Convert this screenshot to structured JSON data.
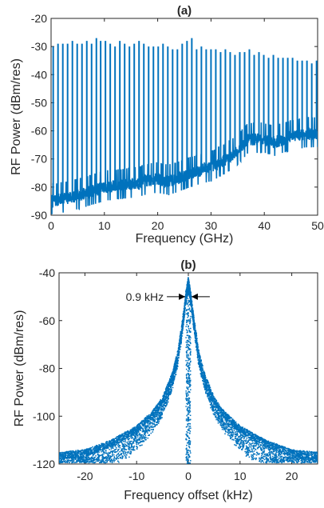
{
  "chart_data": [
    {
      "type": "line",
      "title": "(a)",
      "xlabel": "Frequency (GHz)",
      "ylabel": "RF Power (dBm/res)",
      "xlim": [
        0,
        50
      ],
      "ylim": [
        -90,
        -20
      ],
      "xticks": [
        0,
        10,
        20,
        30,
        40,
        50
      ],
      "yticks": [
        -90,
        -80,
        -70,
        -60,
        -50,
        -40,
        -30,
        -20
      ],
      "grid": false,
      "color": "#0072BD",
      "noise_floor": [
        {
          "x": 0,
          "y": -85
        },
        {
          "x": 5,
          "y": -83
        },
        {
          "x": 10,
          "y": -80
        },
        {
          "x": 15,
          "y": -79
        },
        {
          "x": 20,
          "y": -77
        },
        {
          "x": 22,
          "y": -78
        },
        {
          "x": 25,
          "y": -76
        },
        {
          "x": 28,
          "y": -74
        },
        {
          "x": 30,
          "y": -73
        },
        {
          "x": 33,
          "y": -70
        },
        {
          "x": 35,
          "y": -67
        },
        {
          "x": 37,
          "y": -63
        },
        {
          "x": 40,
          "y": -63
        },
        {
          "x": 42,
          "y": -64
        },
        {
          "x": 45,
          "y": -62
        },
        {
          "x": 48,
          "y": -61
        },
        {
          "x": 50,
          "y": -61
        }
      ],
      "comb_lines": [
        {
          "x": 0.4,
          "y": -30
        },
        {
          "x": 1.3,
          "y": -29
        },
        {
          "x": 2.2,
          "y": -29
        },
        {
          "x": 3.1,
          "y": -29
        },
        {
          "x": 4.0,
          "y": -28
        },
        {
          "x": 4.9,
          "y": -29
        },
        {
          "x": 5.8,
          "y": -29
        },
        {
          "x": 6.7,
          "y": -28
        },
        {
          "x": 7.6,
          "y": -29
        },
        {
          "x": 8.5,
          "y": -27
        },
        {
          "x": 9.3,
          "y": -28
        },
        {
          "x": 10.2,
          "y": -28
        },
        {
          "x": 11.1,
          "y": -29
        },
        {
          "x": 12.0,
          "y": -30
        },
        {
          "x": 12.9,
          "y": -28
        },
        {
          "x": 13.8,
          "y": -29
        },
        {
          "x": 14.7,
          "y": -30
        },
        {
          "x": 15.6,
          "y": -29
        },
        {
          "x": 16.5,
          "y": -28
        },
        {
          "x": 17.4,
          "y": -29
        },
        {
          "x": 18.3,
          "y": -30
        },
        {
          "x": 19.2,
          "y": -30
        },
        {
          "x": 20.1,
          "y": -30
        },
        {
          "x": 21.0,
          "y": -29
        },
        {
          "x": 21.9,
          "y": -30
        },
        {
          "x": 22.8,
          "y": -31
        },
        {
          "x": 23.7,
          "y": -31
        },
        {
          "x": 24.6,
          "y": -29
        },
        {
          "x": 25.5,
          "y": -28
        },
        {
          "x": 26.4,
          "y": -27
        },
        {
          "x": 27.3,
          "y": -31
        },
        {
          "x": 28.2,
          "y": -30
        },
        {
          "x": 29.1,
          "y": -31
        },
        {
          "x": 30.0,
          "y": -31
        },
        {
          "x": 30.9,
          "y": -31
        },
        {
          "x": 31.8,
          "y": -32
        },
        {
          "x": 32.7,
          "y": -31
        },
        {
          "x": 33.6,
          "y": -32
        },
        {
          "x": 34.5,
          "y": -33
        },
        {
          "x": 35.4,
          "y": -32
        },
        {
          "x": 36.3,
          "y": -32
        },
        {
          "x": 37.2,
          "y": -31
        },
        {
          "x": 38.1,
          "y": -33
        },
        {
          "x": 39.0,
          "y": -32
        },
        {
          "x": 39.9,
          "y": -33
        },
        {
          "x": 40.8,
          "y": -34
        },
        {
          "x": 41.7,
          "y": -33
        },
        {
          "x": 42.6,
          "y": -34
        },
        {
          "x": 43.5,
          "y": -34
        },
        {
          "x": 44.4,
          "y": -34
        },
        {
          "x": 45.3,
          "y": -34
        },
        {
          "x": 46.2,
          "y": -35
        },
        {
          "x": 47.1,
          "y": -35
        },
        {
          "x": 48.0,
          "y": -35
        },
        {
          "x": 48.9,
          "y": -36
        },
        {
          "x": 49.8,
          "y": -35
        }
      ]
    },
    {
      "type": "scatter",
      "title": "(b)",
      "xlabel": "Frequency offset (kHz)",
      "ylabel": "RF Power (dBm/res)",
      "xlim": [
        -25,
        25
      ],
      "ylim": [
        -120,
        -40
      ],
      "xticks": [
        -20,
        -10,
        0,
        10,
        20
      ],
      "yticks": [
        -120,
        -100,
        -80,
        -60,
        -40
      ],
      "grid": false,
      "color": "#0072BD",
      "envelope": [
        {
          "x": 0,
          "y": -44
        },
        {
          "x": 0.45,
          "y": -50
        },
        {
          "x": 1,
          "y": -60
        },
        {
          "x": 2,
          "y": -75
        },
        {
          "x": 3,
          "y": -84
        },
        {
          "x": 5,
          "y": -95
        },
        {
          "x": 7,
          "y": -101
        },
        {
          "x": 10,
          "y": -107
        },
        {
          "x": 15,
          "y": -113
        },
        {
          "x": 20,
          "y": -117
        },
        {
          "x": 25,
          "y": -118
        }
      ],
      "peak_points": [
        {
          "x": 0,
          "y": -44
        },
        {
          "x": 0.1,
          "y": -46
        },
        {
          "x": -0.1,
          "y": -47
        },
        {
          "x": 0.2,
          "y": -49
        },
        {
          "x": -0.2,
          "y": -49
        }
      ],
      "annotation": {
        "text": "0.9 kHz",
        "x_left": -0.45,
        "x_right": 0.45,
        "y": -50
      }
    }
  ]
}
